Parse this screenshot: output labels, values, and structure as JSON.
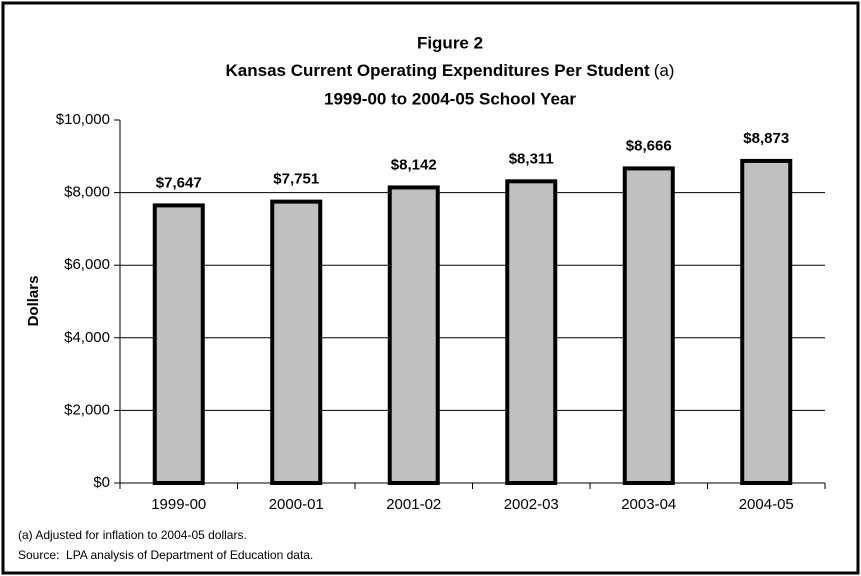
{
  "chart_data": {
    "type": "bar",
    "title": "Figure 2",
    "subtitle": "Kansas Current Operating Expenditures Per Student",
    "subtitle_note": "(a)",
    "period": "1999-00 to 2004-05 School Year",
    "ylabel": "Dollars",
    "categories": [
      "1999-00",
      "2000-01",
      "2001-02",
      "2002-03",
      "2003-04",
      "2004-05"
    ],
    "values": [
      7647,
      7751,
      8142,
      8311,
      8666,
      8873
    ],
    "value_labels": [
      "$7,647",
      "$7,751",
      "$8,142",
      "$8,311",
      "$8,666",
      "$8,873"
    ],
    "color": "#c0c0c0",
    "ylim": [
      0,
      10000
    ],
    "yticks": [
      {
        "value": 0,
        "label": "$0"
      },
      {
        "value": 2000,
        "label": "$2,000"
      },
      {
        "value": 4000,
        "label": "$4,000"
      },
      {
        "value": 6000,
        "label": "$6,000"
      },
      {
        "value": 8000,
        "label": "$8,000"
      },
      {
        "value": 10000,
        "label": "$10,000"
      }
    ],
    "grid": true,
    "notes": [
      "(a) Adjusted for inflation to 2004-05 dollars.",
      "Source:  LPA analysis of Department of Education data."
    ]
  }
}
